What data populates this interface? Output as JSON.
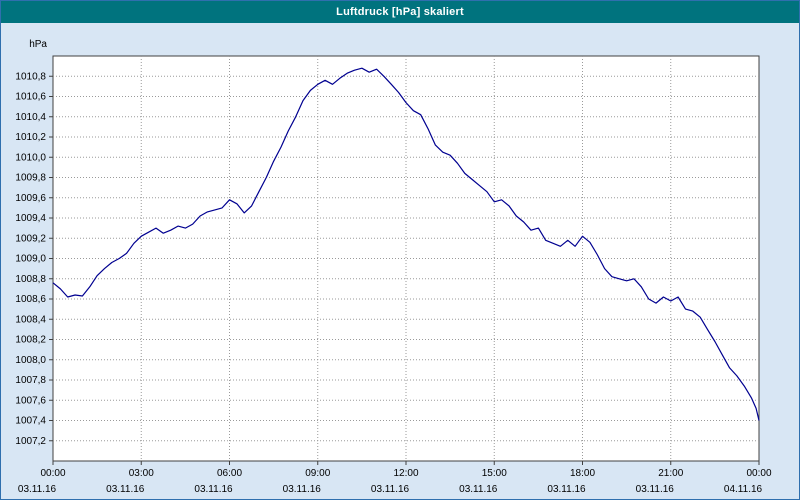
{
  "window": {
    "title": "Luftdruck [hPa] skaliert"
  },
  "chart_data": {
    "type": "line",
    "title": "Luftdruck [hPa] skaliert",
    "xlabel": "",
    "ylabel": "hPa",
    "xlim": [
      0,
      24
    ],
    "ylim": [
      1007.0,
      1011.0
    ],
    "ytick_step": 0.2,
    "grid": true,
    "grid_style": "dotted",
    "legend": "none",
    "yticks": [
      "1010,8",
      "1010,6",
      "1010,4",
      "1010,2",
      "1010,0",
      "1009,8",
      "1009,6",
      "1009,4",
      "1009,2",
      "1009,0",
      "1008,8",
      "1008,6",
      "1008,4",
      "1008,2",
      "1008,0",
      "1007,8",
      "1007,6",
      "1007,4",
      "1007,2"
    ],
    "xticks": [
      {
        "h": 0,
        "time": "00:00",
        "date": "03.11.16"
      },
      {
        "h": 3,
        "time": "03:00",
        "date": "03.11.16"
      },
      {
        "h": 6,
        "time": "06:00",
        "date": "03.11.16"
      },
      {
        "h": 9,
        "time": "09:00",
        "date": "03.11.16"
      },
      {
        "h": 12,
        "time": "12:00",
        "date": "03.11.16"
      },
      {
        "h": 15,
        "time": "15:00",
        "date": "03.11.16"
      },
      {
        "h": 18,
        "time": "18:00",
        "date": "03.11.16"
      },
      {
        "h": 21,
        "time": "21:00",
        "date": "03.11.16"
      },
      {
        "h": 24,
        "time": "00:00",
        "date": "04.11.16"
      }
    ],
    "series": [
      {
        "name": "Luftdruck",
        "color": "#000090",
        "x": [
          0,
          0.25,
          0.5,
          0.75,
          1,
          1.25,
          1.5,
          1.75,
          2,
          2.25,
          2.5,
          2.75,
          3,
          3.25,
          3.5,
          3.75,
          4,
          4.25,
          4.5,
          4.75,
          5,
          5.25,
          5.5,
          5.75,
          6,
          6.25,
          6.5,
          6.75,
          7,
          7.25,
          7.5,
          7.75,
          8,
          8.25,
          8.5,
          8.75,
          9,
          9.25,
          9.5,
          9.75,
          10,
          10.25,
          10.5,
          10.75,
          11,
          11.25,
          11.5,
          11.75,
          12,
          12.25,
          12.5,
          12.75,
          13,
          13.25,
          13.5,
          13.75,
          14,
          14.25,
          14.5,
          14.75,
          15,
          15.25,
          15.5,
          15.75,
          16,
          16.25,
          16.5,
          16.75,
          17,
          17.25,
          17.5,
          17.75,
          18,
          18.25,
          18.5,
          18.75,
          19,
          19.25,
          19.5,
          19.75,
          20,
          20.25,
          20.5,
          20.75,
          21,
          21.25,
          21.5,
          21.75,
          22,
          22.25,
          22.5,
          22.75,
          23,
          23.25,
          23.5,
          23.75,
          23.9,
          24
        ],
        "values": [
          1008.76,
          1008.7,
          1008.62,
          1008.64,
          1008.63,
          1008.72,
          1008.83,
          1008.9,
          1008.96,
          1009.0,
          1009.05,
          1009.15,
          1009.22,
          1009.26,
          1009.3,
          1009.25,
          1009.28,
          1009.32,
          1009.3,
          1009.34,
          1009.42,
          1009.46,
          1009.48,
          1009.5,
          1009.58,
          1009.54,
          1009.45,
          1009.52,
          1009.66,
          1009.8,
          1009.96,
          1010.1,
          1010.26,
          1010.4,
          1010.56,
          1010.66,
          1010.72,
          1010.76,
          1010.72,
          1010.78,
          1010.83,
          1010.86,
          1010.88,
          1010.84,
          1010.87,
          1010.8,
          1010.72,
          1010.64,
          1010.54,
          1010.46,
          1010.42,
          1010.28,
          1010.12,
          1010.05,
          1010.02,
          1009.94,
          1009.84,
          1009.78,
          1009.72,
          1009.66,
          1009.56,
          1009.58,
          1009.52,
          1009.42,
          1009.36,
          1009.28,
          1009.3,
          1009.18,
          1009.15,
          1009.12,
          1009.18,
          1009.12,
          1009.22,
          1009.16,
          1009.04,
          1008.9,
          1008.82,
          1008.8,
          1008.78,
          1008.8,
          1008.72,
          1008.6,
          1008.56,
          1008.62,
          1008.58,
          1008.62,
          1008.5,
          1008.48,
          1008.42,
          1008.3,
          1008.18,
          1008.05,
          1007.92,
          1007.84,
          1007.74,
          1007.62,
          1007.52,
          1007.4
        ]
      }
    ],
    "colors": {
      "title_bg": "#00737e",
      "title_fg": "#ffffff",
      "page_bg": "#d8e6f4",
      "plot_bg": "#ffffff",
      "grid": "#9a9a9a",
      "axis": "#404040",
      "border": "#2f6fae",
      "tick_text": "#000000"
    }
  }
}
